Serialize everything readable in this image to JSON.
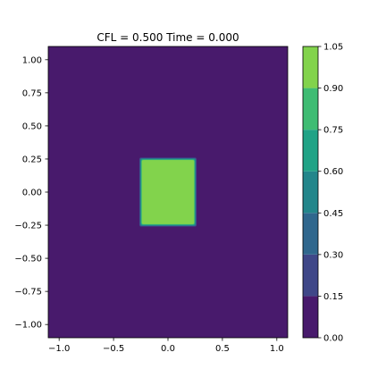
{
  "chart_data": {
    "type": "heatmap",
    "title": "CFL = 0.500 Time = 0.000",
    "xlabel": "",
    "ylabel": "",
    "xlim": [
      -1.1,
      1.1
    ],
    "ylim": [
      -1.1,
      1.1
    ],
    "x_ticks": [
      -1.0,
      -0.5,
      0.0,
      0.5,
      1.0
    ],
    "x_tick_labels": [
      "−1.0",
      "−0.5",
      "0.0",
      "0.5",
      "1.0"
    ],
    "y_ticks": [
      1.0,
      0.75,
      0.5,
      0.25,
      0.0,
      -0.25,
      -0.5,
      -0.75,
      -1.0
    ],
    "y_tick_labels": [
      "1.00",
      "0.75",
      "0.50",
      "0.25",
      "0.00",
      "−0.25",
      "−0.50",
      "−0.75",
      "−1.00"
    ],
    "field": {
      "background_value": 0.0,
      "square": {
        "x": [
          -0.25,
          0.25
        ],
        "y": [
          -0.25,
          0.25
        ],
        "value": 1.0
      }
    },
    "colorbar": {
      "levels": [
        0.0,
        0.15,
        0.3,
        0.45,
        0.6,
        0.75,
        0.9,
        1.05
      ],
      "tick_labels": [
        "0.00",
        "0.15",
        "0.30",
        "0.45",
        "0.60",
        "0.75",
        "0.90",
        "1.05"
      ],
      "colors": [
        "#481a6c",
        "#3f4788",
        "#30678d",
        "#23868b",
        "#20a386",
        "#3fbc73",
        "#82d34c",
        "#d2e21b"
      ]
    },
    "grid": false,
    "legend": "none"
  }
}
